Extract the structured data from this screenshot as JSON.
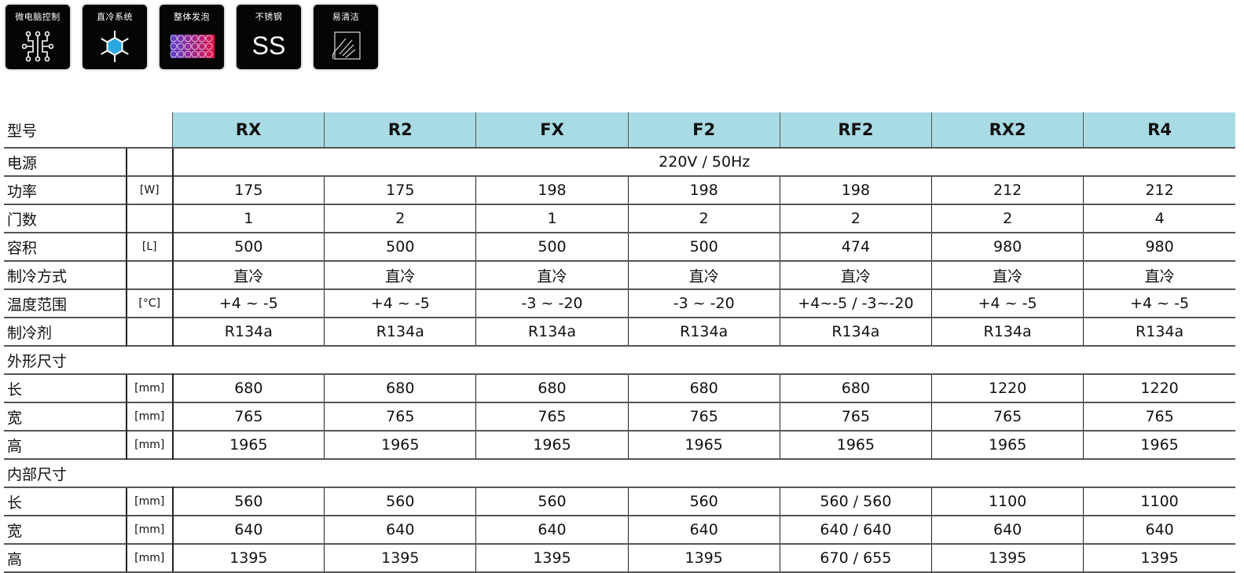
{
  "features": [
    {
      "label": "微电脑控制",
      "icon": "circuit-icon"
    },
    {
      "label": "直冷系统",
      "icon": "snowflake-icon"
    },
    {
      "label": "整体发泡",
      "icon": "foam-icon"
    },
    {
      "label": "不锈钢",
      "icon": "stainless-steel-icon",
      "glyph": "SS"
    },
    {
      "label": "易清洁",
      "icon": "hand-wipe-icon"
    }
  ],
  "table": {
    "header_label": "型号",
    "models": [
      "RX",
      "R2",
      "FX",
      "F2",
      "RF2",
      "RX2",
      "R4"
    ],
    "power_source": {
      "label": "电源",
      "value": "220V / 50Hz"
    },
    "rows": [
      {
        "label": "功率",
        "unit": "[W]",
        "values": [
          "175",
          "175",
          "198",
          "198",
          "198",
          "212",
          "212"
        ]
      },
      {
        "label": "门数",
        "unit": "",
        "values": [
          "1",
          "2",
          "1",
          "2",
          "2",
          "2",
          "4"
        ]
      },
      {
        "label": "容积",
        "unit": "[L]",
        "values": [
          "500",
          "500",
          "500",
          "500",
          "474",
          "980",
          "980"
        ]
      },
      {
        "label": "制冷方式",
        "unit": "",
        "values": [
          "直冷",
          "直冷",
          "直冷",
          "直冷",
          "直冷",
          "直冷",
          "直冷"
        ]
      },
      {
        "label": "温度范围",
        "unit": "[°C]",
        "values": [
          "+4 ~ -5",
          "+4 ~ -5",
          "-3 ~ -20",
          "-3 ~ -20",
          "+4~-5 / -3~-20",
          "+4 ~ -5",
          "+4 ~ -5"
        ]
      },
      {
        "label": "制冷剂",
        "unit": "",
        "values": [
          "R134a",
          "R134a",
          "R134a",
          "R134a",
          "R134a",
          "R134a",
          "R134a"
        ]
      }
    ],
    "sections": [
      {
        "title": "外形尺寸",
        "rows": [
          {
            "label": "长",
            "unit": "[mm]",
            "values": [
              "680",
              "680",
              "680",
              "680",
              "680",
              "1220",
              "1220"
            ]
          },
          {
            "label": "宽",
            "unit": "[mm]",
            "values": [
              "765",
              "765",
              "765",
              "765",
              "765",
              "765",
              "765"
            ]
          },
          {
            "label": "高",
            "unit": "[mm]",
            "values": [
              "1965",
              "1965",
              "1965",
              "1965",
              "1965",
              "1965",
              "1965"
            ]
          }
        ]
      },
      {
        "title": "内部尺寸",
        "rows": [
          {
            "label": "长",
            "unit": "[mm]",
            "values": [
              "560",
              "560",
              "560",
              "560",
              "560 / 560",
              "1100",
              "1100"
            ]
          },
          {
            "label": "宽",
            "unit": "[mm]",
            "values": [
              "640",
              "640",
              "640",
              "640",
              "640 / 640",
              "640",
              "640"
            ]
          },
          {
            "label": "高",
            "unit": "[mm]",
            "values": [
              "1395",
              "1395",
              "1395",
              "1395",
              "670 / 655",
              "1395",
              "1395"
            ]
          }
        ]
      }
    ]
  },
  "colors": {
    "header_bg": "#a9dbe4",
    "icon_bg": "#050505",
    "snowflake": "#2aa8e0"
  }
}
